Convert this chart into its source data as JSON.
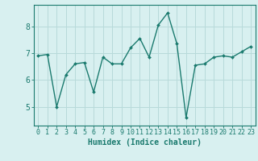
{
  "x": [
    0,
    1,
    2,
    3,
    4,
    5,
    6,
    7,
    8,
    9,
    10,
    11,
    12,
    13,
    14,
    15,
    16,
    17,
    18,
    19,
    20,
    21,
    22,
    23
  ],
  "y": [
    6.9,
    6.95,
    5.0,
    6.2,
    6.6,
    6.65,
    5.55,
    6.85,
    6.6,
    6.6,
    7.2,
    7.55,
    6.85,
    8.05,
    8.5,
    7.35,
    4.6,
    6.55,
    6.6,
    6.85,
    6.9,
    6.85,
    7.05,
    7.25
  ],
  "line_color": "#1a7a6e",
  "marker": "D",
  "marker_size": 2.0,
  "linewidth": 1.0,
  "xlabel": "Humidex (Indice chaleur)",
  "xlabel_fontsize": 7,
  "xlim": [
    -0.5,
    23.5
  ],
  "ylim": [
    4.3,
    8.8
  ],
  "yticks": [
    5,
    6,
    7,
    8
  ],
  "xticks": [
    0,
    1,
    2,
    3,
    4,
    5,
    6,
    7,
    8,
    9,
    10,
    11,
    12,
    13,
    14,
    15,
    16,
    17,
    18,
    19,
    20,
    21,
    22,
    23
  ],
  "bg_color": "#d8f0f0",
  "grid_color": "#b8dada",
  "tick_color": "#1a7a6e",
  "tick_fontsize": 6,
  "spine_color": "#1a7a6e"
}
